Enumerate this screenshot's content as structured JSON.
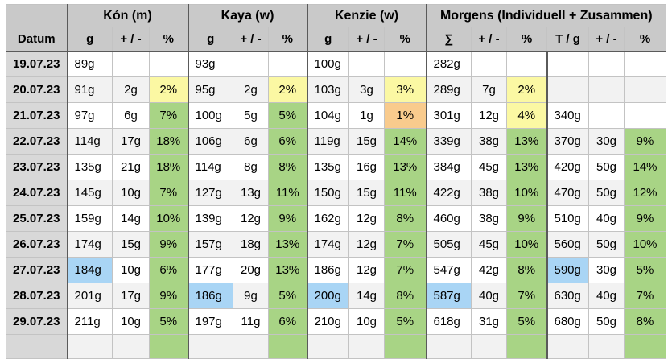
{
  "header": {
    "corner": "",
    "groups": [
      "Kón (m)",
      "Kaya (w)",
      "Kenzie (w)",
      "Morgens (Individuell + Zusammen)"
    ],
    "columns": [
      "Datum",
      "g",
      "+ / -",
      "%",
      "g",
      "+ / -",
      "%",
      "g",
      "+ / -",
      "%",
      "∑",
      "+ / -",
      "%",
      "T / g",
      "+ / -",
      "%"
    ]
  },
  "rows": [
    {
      "date": "19.07.23",
      "cells": [
        "89g",
        "",
        "",
        "93g",
        "",
        "",
        "100g",
        "",
        "",
        "282g",
        "",
        "",
        "",
        "",
        ""
      ]
    },
    {
      "date": "20.07.23",
      "cells": [
        "91g",
        "2g",
        {
          "v": "2%",
          "bg": "yellow"
        },
        "95g",
        "2g",
        {
          "v": "2%",
          "bg": "yellow"
        },
        "103g",
        "3g",
        {
          "v": "3%",
          "bg": "yellow"
        },
        "289g",
        "7g",
        {
          "v": "2%",
          "bg": "yellow"
        },
        "",
        "",
        ""
      ]
    },
    {
      "date": "21.07.23",
      "cells": [
        "97g",
        "6g",
        {
          "v": "7%",
          "bg": "green"
        },
        "100g",
        "5g",
        {
          "v": "5%",
          "bg": "green"
        },
        "104g",
        "1g",
        {
          "v": "1%",
          "bg": "orange"
        },
        "301g",
        "12g",
        {
          "v": "4%",
          "bg": "yellow"
        },
        "340g",
        "",
        ""
      ]
    },
    {
      "date": "22.07.23",
      "cells": [
        "114g",
        "17g",
        {
          "v": "18%",
          "bg": "green"
        },
        "106g",
        "6g",
        {
          "v": "6%",
          "bg": "green"
        },
        "119g",
        "15g",
        {
          "v": "14%",
          "bg": "green"
        },
        "339g",
        "38g",
        {
          "v": "13%",
          "bg": "green"
        },
        "370g",
        "30g",
        {
          "v": "9%",
          "bg": "green"
        }
      ]
    },
    {
      "date": "23.07.23",
      "cells": [
        "135g",
        "21g",
        {
          "v": "18%",
          "bg": "green"
        },
        "114g",
        "8g",
        {
          "v": "8%",
          "bg": "green"
        },
        "135g",
        "16g",
        {
          "v": "13%",
          "bg": "green"
        },
        "384g",
        "45g",
        {
          "v": "13%",
          "bg": "green"
        },
        "420g",
        "50g",
        {
          "v": "14%",
          "bg": "green"
        }
      ]
    },
    {
      "date": "24.07.23",
      "cells": [
        "145g",
        "10g",
        {
          "v": "7%",
          "bg": "green"
        },
        "127g",
        "13g",
        {
          "v": "11%",
          "bg": "green"
        },
        "150g",
        "15g",
        {
          "v": "11%",
          "bg": "green"
        },
        "422g",
        "38g",
        {
          "v": "10%",
          "bg": "green"
        },
        "470g",
        "50g",
        {
          "v": "12%",
          "bg": "green"
        }
      ]
    },
    {
      "date": "25.07.23",
      "cells": [
        "159g",
        "14g",
        {
          "v": "10%",
          "bg": "green"
        },
        "139g",
        "12g",
        {
          "v": "9%",
          "bg": "green"
        },
        "162g",
        "12g",
        {
          "v": "8%",
          "bg": "green"
        },
        "460g",
        "38g",
        {
          "v": "9%",
          "bg": "green"
        },
        "510g",
        "40g",
        {
          "v": "9%",
          "bg": "green"
        }
      ]
    },
    {
      "date": "26.07.23",
      "cells": [
        "174g",
        "15g",
        {
          "v": "9%",
          "bg": "green"
        },
        "157g",
        "18g",
        {
          "v": "13%",
          "bg": "green"
        },
        "174g",
        "12g",
        {
          "v": "7%",
          "bg": "green"
        },
        "505g",
        "45g",
        {
          "v": "10%",
          "bg": "green"
        },
        "560g",
        "50g",
        {
          "v": "10%",
          "bg": "green"
        }
      ]
    },
    {
      "date": "27.07.23",
      "cells": [
        {
          "v": "184g",
          "bg": "blue"
        },
        "10g",
        {
          "v": "6%",
          "bg": "green"
        },
        "177g",
        "20g",
        {
          "v": "13%",
          "bg": "green"
        },
        "186g",
        "12g",
        {
          "v": "7%",
          "bg": "green"
        },
        "547g",
        "42g",
        {
          "v": "8%",
          "bg": "green"
        },
        {
          "v": "590g",
          "bg": "blue"
        },
        "30g",
        {
          "v": "5%",
          "bg": "green"
        }
      ]
    },
    {
      "date": "28.07.23",
      "cells": [
        "201g",
        "17g",
        {
          "v": "9%",
          "bg": "green"
        },
        {
          "v": "186g",
          "bg": "blue"
        },
        "9g",
        {
          "v": "5%",
          "bg": "green"
        },
        {
          "v": "200g",
          "bg": "blue"
        },
        "14g",
        {
          "v": "8%",
          "bg": "green"
        },
        {
          "v": "587g",
          "bg": "blue"
        },
        "40g",
        {
          "v": "7%",
          "bg": "green"
        },
        "630g",
        "40g",
        {
          "v": "7%",
          "bg": "green"
        }
      ]
    },
    {
      "date": "29.07.23",
      "cells": [
        "211g",
        "10g",
        {
          "v": "5%",
          "bg": "green"
        },
        "197g",
        "11g",
        {
          "v": "6%",
          "bg": "green"
        },
        "210g",
        "10g",
        {
          "v": "5%",
          "bg": "green"
        },
        "618g",
        "31g",
        {
          "v": "5%",
          "bg": "green"
        },
        "680g",
        "50g",
        {
          "v": "8%",
          "bg": "green"
        }
      ]
    }
  ],
  "partial_row": {
    "cells_bg": [
      "",
      "",
      "green",
      "",
      "",
      "green",
      "",
      "",
      "green",
      "",
      "",
      "green",
      "",
      "",
      "green"
    ]
  },
  "colors": {
    "yellow": "#fbf8a3",
    "green": "#a8d485",
    "orange": "#f9cb8d",
    "blue": "#a9d5f5",
    "header_bg": "#c9c9c9",
    "date_col_bg": "#d8d8d8",
    "alt_row_bg": "#f2f2f2"
  }
}
